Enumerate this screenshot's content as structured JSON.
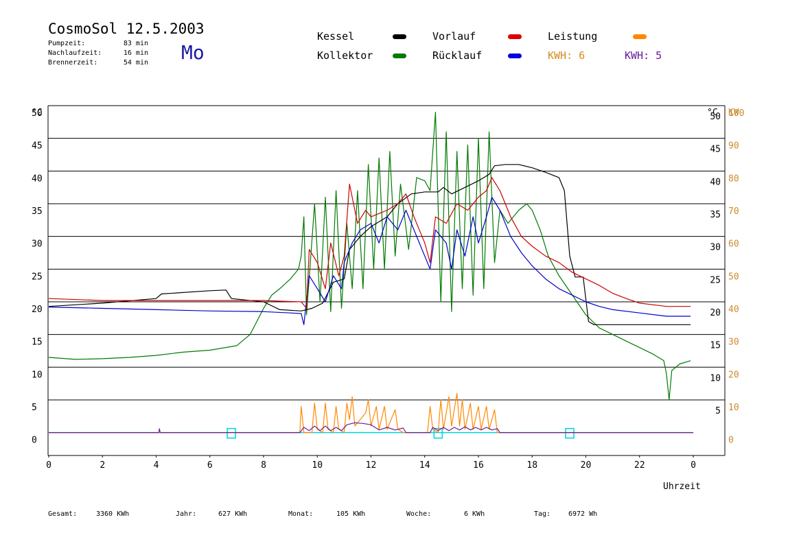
{
  "header": {
    "title": "CosmoSol 12.5.2003",
    "day": "Mo",
    "stats": [
      {
        "label": "Pumpzeit:",
        "value": "83 min"
      },
      {
        "label": "Nachlaufzeit:",
        "value": "16 min"
      },
      {
        "label": "Brennerzeit:",
        "value": "54 min"
      }
    ]
  },
  "legend": {
    "kessel": "Kessel",
    "kollektor": "Kollektor",
    "vorlauf": "Vorlauf",
    "ruecklauf": "Rücklauf",
    "leistung": "Leistung",
    "kwh1": "KWH: 6",
    "kwh2": "KWH: 5"
  },
  "colors": {
    "kessel": "#000000",
    "kollektor": "#007a00",
    "vorlauf": "#cc0000",
    "ruecklauf": "#0000cc",
    "leistung": "#ff8800",
    "kwh2": "#6a1b9a",
    "axis_right": "#cc8a2a",
    "zero_line": "#00d0e0"
  },
  "footer": {
    "gesamt_label": "Gesamt:",
    "gesamt_value": "3360 KWh",
    "jahr_label": "Jahr:",
    "jahr_value": "627 KWh",
    "monat_label": "Monat:",
    "monat_value": "105 KWh",
    "woche_label": "Woche:",
    "woche_value": "6 KWh",
    "tag_label": "Tag:",
    "tag_value": "6972 Wh"
  },
  "chart_data": {
    "type": "line",
    "xlabel": "Uhrzeit",
    "ylabel_left": "°C",
    "ylabel_right_1": "°C",
    "ylabel_right_2": "KW",
    "xlim": [
      0,
      24
    ],
    "ylim": [
      -3.5,
      50
    ],
    "grid": true,
    "x_ticks": [
      "0",
      "2",
      "4",
      "6",
      "8",
      "10",
      "12",
      "14",
      "16",
      "18",
      "20",
      "22",
      "0"
    ],
    "y_ticks_left": [
      "0",
      "5",
      "10",
      "15",
      "20",
      "25",
      "30",
      "35",
      "40",
      "45",
      "50"
    ],
    "y_ticks_right_c": [
      "5",
      "10",
      "15",
      "20",
      "25",
      "30",
      "35",
      "40",
      "45",
      "50"
    ],
    "y_ticks_right_kw": [
      "0",
      "10",
      "20",
      "30",
      "40",
      "50",
      "60",
      "70",
      "80",
      "90",
      "100"
    ],
    "series": [
      {
        "name": "Kessel",
        "key": "kessel",
        "points": [
          [
            0,
            19.3
          ],
          [
            2,
            19.8
          ],
          [
            4,
            20.5
          ],
          [
            4.2,
            21.2
          ],
          [
            6,
            21.7
          ],
          [
            6.6,
            21.8
          ],
          [
            6.8,
            20.5
          ],
          [
            8,
            20
          ],
          [
            8.6,
            18.8
          ],
          [
            9.4,
            18.6
          ],
          [
            9.8,
            19
          ],
          [
            10.2,
            19.8
          ],
          [
            10.6,
            23
          ],
          [
            11,
            23.5
          ],
          [
            11.2,
            28
          ],
          [
            11.6,
            30
          ],
          [
            12,
            31.5
          ],
          [
            12.6,
            33
          ],
          [
            13,
            35
          ],
          [
            13.5,
            36.5
          ],
          [
            14,
            36.8
          ],
          [
            14.5,
            36.8
          ],
          [
            14.7,
            37.5
          ],
          [
            15,
            36.5
          ],
          [
            15.5,
            37.5
          ],
          [
            16,
            38.5
          ],
          [
            16.4,
            39.5
          ],
          [
            16.6,
            40.8
          ],
          [
            17,
            41
          ],
          [
            17.5,
            41
          ],
          [
            18,
            40.5
          ],
          [
            18.5,
            39.8
          ],
          [
            19,
            39
          ],
          [
            19.2,
            37
          ],
          [
            19.4,
            27
          ],
          [
            19.6,
            23.8
          ],
          [
            19.9,
            23.8
          ],
          [
            20.1,
            17
          ],
          [
            20.3,
            16.5
          ],
          [
            22,
            16.5
          ],
          [
            23.9,
            16.5
          ]
        ]
      },
      {
        "name": "Vorlauf",
        "key": "vorlauf",
        "points": [
          [
            0,
            20.5
          ],
          [
            2,
            20.2
          ],
          [
            4,
            20.2
          ],
          [
            6,
            20.2
          ],
          [
            7,
            20.2
          ],
          [
            8,
            20.2
          ],
          [
            8.6,
            20.1
          ],
          [
            9.4,
            20
          ],
          [
            9.6,
            19
          ],
          [
            9.7,
            28
          ],
          [
            10,
            26
          ],
          [
            10.3,
            22
          ],
          [
            10.5,
            29
          ],
          [
            10.8,
            24
          ],
          [
            11,
            27
          ],
          [
            11.2,
            38
          ],
          [
            11.5,
            32
          ],
          [
            11.8,
            34
          ],
          [
            12,
            33
          ],
          [
            12.3,
            33.5
          ],
          [
            12.6,
            34
          ],
          [
            13,
            35
          ],
          [
            13.3,
            36.5
          ],
          [
            13.6,
            33
          ],
          [
            14,
            29
          ],
          [
            14.2,
            26
          ],
          [
            14.4,
            33
          ],
          [
            14.8,
            32
          ],
          [
            15.2,
            35
          ],
          [
            15.6,
            34
          ],
          [
            16,
            36
          ],
          [
            16.3,
            37
          ],
          [
            16.5,
            39
          ],
          [
            16.8,
            37
          ],
          [
            17.2,
            33
          ],
          [
            17.6,
            30
          ],
          [
            18,
            28.5
          ],
          [
            18.5,
            27
          ],
          [
            19,
            26
          ],
          [
            19.5,
            24.5
          ],
          [
            20,
            23.5
          ],
          [
            20.5,
            22.5
          ],
          [
            21,
            21.3
          ],
          [
            21.5,
            20.5
          ],
          [
            22,
            19.8
          ],
          [
            23,
            19.3
          ],
          [
            23.9,
            19.3
          ]
        ]
      },
      {
        "name": "Rücklauf",
        "key": "ruecklauf",
        "points": [
          [
            0,
            19.2
          ],
          [
            2,
            19
          ],
          [
            4,
            18.8
          ],
          [
            6,
            18.6
          ],
          [
            8,
            18.5
          ],
          [
            9,
            18.3
          ],
          [
            9.4,
            18.2
          ],
          [
            9.5,
            16.5
          ],
          [
            9.7,
            24
          ],
          [
            10,
            22
          ],
          [
            10.3,
            20
          ],
          [
            10.6,
            24
          ],
          [
            10.9,
            22
          ],
          [
            11,
            26
          ],
          [
            11.3,
            29
          ],
          [
            11.6,
            31
          ],
          [
            12,
            32
          ],
          [
            12.3,
            29
          ],
          [
            12.6,
            33
          ],
          [
            13,
            31
          ],
          [
            13.3,
            34
          ],
          [
            13.6,
            31
          ],
          [
            14,
            27
          ],
          [
            14.2,
            25
          ],
          [
            14.4,
            31
          ],
          [
            14.8,
            29
          ],
          [
            15,
            25
          ],
          [
            15.2,
            31
          ],
          [
            15.5,
            27
          ],
          [
            15.8,
            33
          ],
          [
            16,
            29
          ],
          [
            16.3,
            33
          ],
          [
            16.5,
            36
          ],
          [
            16.8,
            34
          ],
          [
            17.2,
            30
          ],
          [
            17.6,
            27.5
          ],
          [
            18,
            25.5
          ],
          [
            18.5,
            23.5
          ],
          [
            19,
            22
          ],
          [
            19.5,
            21
          ],
          [
            20,
            20
          ],
          [
            20.5,
            19.3
          ],
          [
            21,
            18.8
          ],
          [
            22,
            18.3
          ],
          [
            23,
            17.8
          ],
          [
            23.9,
            17.8
          ]
        ]
      },
      {
        "name": "Kollektor",
        "key": "kollektor",
        "points": [
          [
            0,
            11.5
          ],
          [
            1,
            11.2
          ],
          [
            2,
            11.3
          ],
          [
            3,
            11.5
          ],
          [
            4,
            11.8
          ],
          [
            5,
            12.3
          ],
          [
            6,
            12.6
          ],
          [
            7,
            13.3
          ],
          [
            7.5,
            15
          ],
          [
            8,
            19
          ],
          [
            8.3,
            21
          ],
          [
            8.6,
            22
          ],
          [
            9,
            23.5
          ],
          [
            9.3,
            25
          ],
          [
            9.4,
            27
          ],
          [
            9.5,
            33
          ],
          [
            9.6,
            18
          ],
          [
            9.9,
            35
          ],
          [
            10.1,
            20
          ],
          [
            10.3,
            36
          ],
          [
            10.5,
            18.5
          ],
          [
            10.7,
            37
          ],
          [
            10.9,
            19
          ],
          [
            11.1,
            32
          ],
          [
            11.3,
            22
          ],
          [
            11.5,
            37
          ],
          [
            11.7,
            22
          ],
          [
            11.9,
            41
          ],
          [
            12.1,
            25
          ],
          [
            12.3,
            42
          ],
          [
            12.5,
            25
          ],
          [
            12.7,
            43
          ],
          [
            12.9,
            27
          ],
          [
            13.1,
            38
          ],
          [
            13.4,
            28
          ],
          [
            13.7,
            39
          ],
          [
            14,
            38.5
          ],
          [
            14.2,
            37
          ],
          [
            14.4,
            49
          ],
          [
            14.6,
            20
          ],
          [
            14.8,
            46
          ],
          [
            15,
            18.5
          ],
          [
            15.2,
            43
          ],
          [
            15.4,
            22
          ],
          [
            15.6,
            44
          ],
          [
            15.8,
            21
          ],
          [
            16,
            45
          ],
          [
            16.2,
            22
          ],
          [
            16.4,
            46
          ],
          [
            16.6,
            26
          ],
          [
            16.8,
            34
          ],
          [
            17.1,
            32
          ],
          [
            17.5,
            34
          ],
          [
            17.8,
            35
          ],
          [
            18,
            34
          ],
          [
            18.3,
            31
          ],
          [
            18.6,
            27
          ],
          [
            19,
            24
          ],
          [
            19.5,
            21
          ],
          [
            20,
            18
          ],
          [
            20.5,
            16
          ],
          [
            21,
            15
          ],
          [
            21.5,
            14
          ],
          [
            22,
            13
          ],
          [
            22.5,
            12
          ],
          [
            22.9,
            11
          ],
          [
            23,
            9
          ],
          [
            23.1,
            5
          ],
          [
            23.2,
            9.5
          ],
          [
            23.5,
            10.5
          ],
          [
            23.9,
            11
          ]
        ]
      },
      {
        "name": "Leistung",
        "key": "leistung",
        "points": [
          [
            0,
            0
          ],
          [
            9.35,
            0
          ],
          [
            9.4,
            4
          ],
          [
            9.5,
            0
          ],
          [
            9.8,
            0
          ],
          [
            9.9,
            4.5
          ],
          [
            10,
            0.5
          ],
          [
            10.2,
            0
          ],
          [
            10.3,
            4.5
          ],
          [
            10.4,
            0.5
          ],
          [
            10.6,
            0
          ],
          [
            10.7,
            4
          ],
          [
            10.8,
            0.5
          ],
          [
            11,
            0
          ],
          [
            11.1,
            4.5
          ],
          [
            11.2,
            2
          ],
          [
            11.3,
            5.5
          ],
          [
            11.4,
            1
          ],
          [
            11.6,
            2
          ],
          [
            11.8,
            3
          ],
          [
            11.9,
            5
          ],
          [
            12,
            1
          ],
          [
            12.2,
            4
          ],
          [
            12.3,
            0.5
          ],
          [
            12.5,
            4
          ],
          [
            12.6,
            0.5
          ],
          [
            12.9,
            3.5
          ],
          [
            13,
            0.5
          ],
          [
            13.2,
            0
          ],
          [
            14.1,
            0
          ],
          [
            14.2,
            4
          ],
          [
            14.3,
            0.5
          ],
          [
            14.5,
            0
          ],
          [
            14.6,
            5
          ],
          [
            14.7,
            0.5
          ],
          [
            14.9,
            5.5
          ],
          [
            15,
            1
          ],
          [
            15.2,
            6
          ],
          [
            15.3,
            1
          ],
          [
            15.4,
            5
          ],
          [
            15.5,
            0.5
          ],
          [
            15.7,
            4.5
          ],
          [
            15.8,
            0.5
          ],
          [
            16,
            4
          ],
          [
            16.1,
            0.5
          ],
          [
            16.3,
            4
          ],
          [
            16.4,
            0.5
          ],
          [
            16.6,
            3.5
          ],
          [
            16.7,
            0
          ],
          [
            24,
            0
          ]
        ]
      },
      {
        "name": "KWH: 5",
        "key": "kwh2",
        "points": [
          [
            0,
            0
          ],
          [
            4.1,
            0
          ],
          [
            4.12,
            0.6
          ],
          [
            4.15,
            0
          ],
          [
            9.35,
            0
          ],
          [
            9.5,
            0.8
          ],
          [
            9.7,
            0.3
          ],
          [
            9.9,
            1
          ],
          [
            10.1,
            0.3
          ],
          [
            10.3,
            1
          ],
          [
            10.5,
            0.3
          ],
          [
            10.7,
            0.8
          ],
          [
            10.9,
            0.3
          ],
          [
            11.1,
            1.2
          ],
          [
            11.4,
            1.5
          ],
          [
            11.7,
            1.4
          ],
          [
            12,
            1.2
          ],
          [
            12.3,
            0.4
          ],
          [
            12.6,
            0.8
          ],
          [
            12.9,
            0.4
          ],
          [
            13.2,
            0.7
          ],
          [
            13.3,
            0
          ],
          [
            14.2,
            0
          ],
          [
            14.3,
            0.8
          ],
          [
            14.5,
            0.3
          ],
          [
            14.7,
            0.8
          ],
          [
            14.9,
            0.3
          ],
          [
            15.1,
            0.8
          ],
          [
            15.3,
            0.4
          ],
          [
            15.5,
            0.9
          ],
          [
            15.7,
            0.4
          ],
          [
            15.9,
            0.8
          ],
          [
            16.1,
            0.4
          ],
          [
            16.3,
            0.8
          ],
          [
            16.5,
            0.4
          ],
          [
            16.7,
            0.6
          ],
          [
            16.8,
            0
          ],
          [
            24,
            0
          ]
        ]
      }
    ],
    "markers": [
      6.8,
      14.5,
      19.4
    ]
  }
}
